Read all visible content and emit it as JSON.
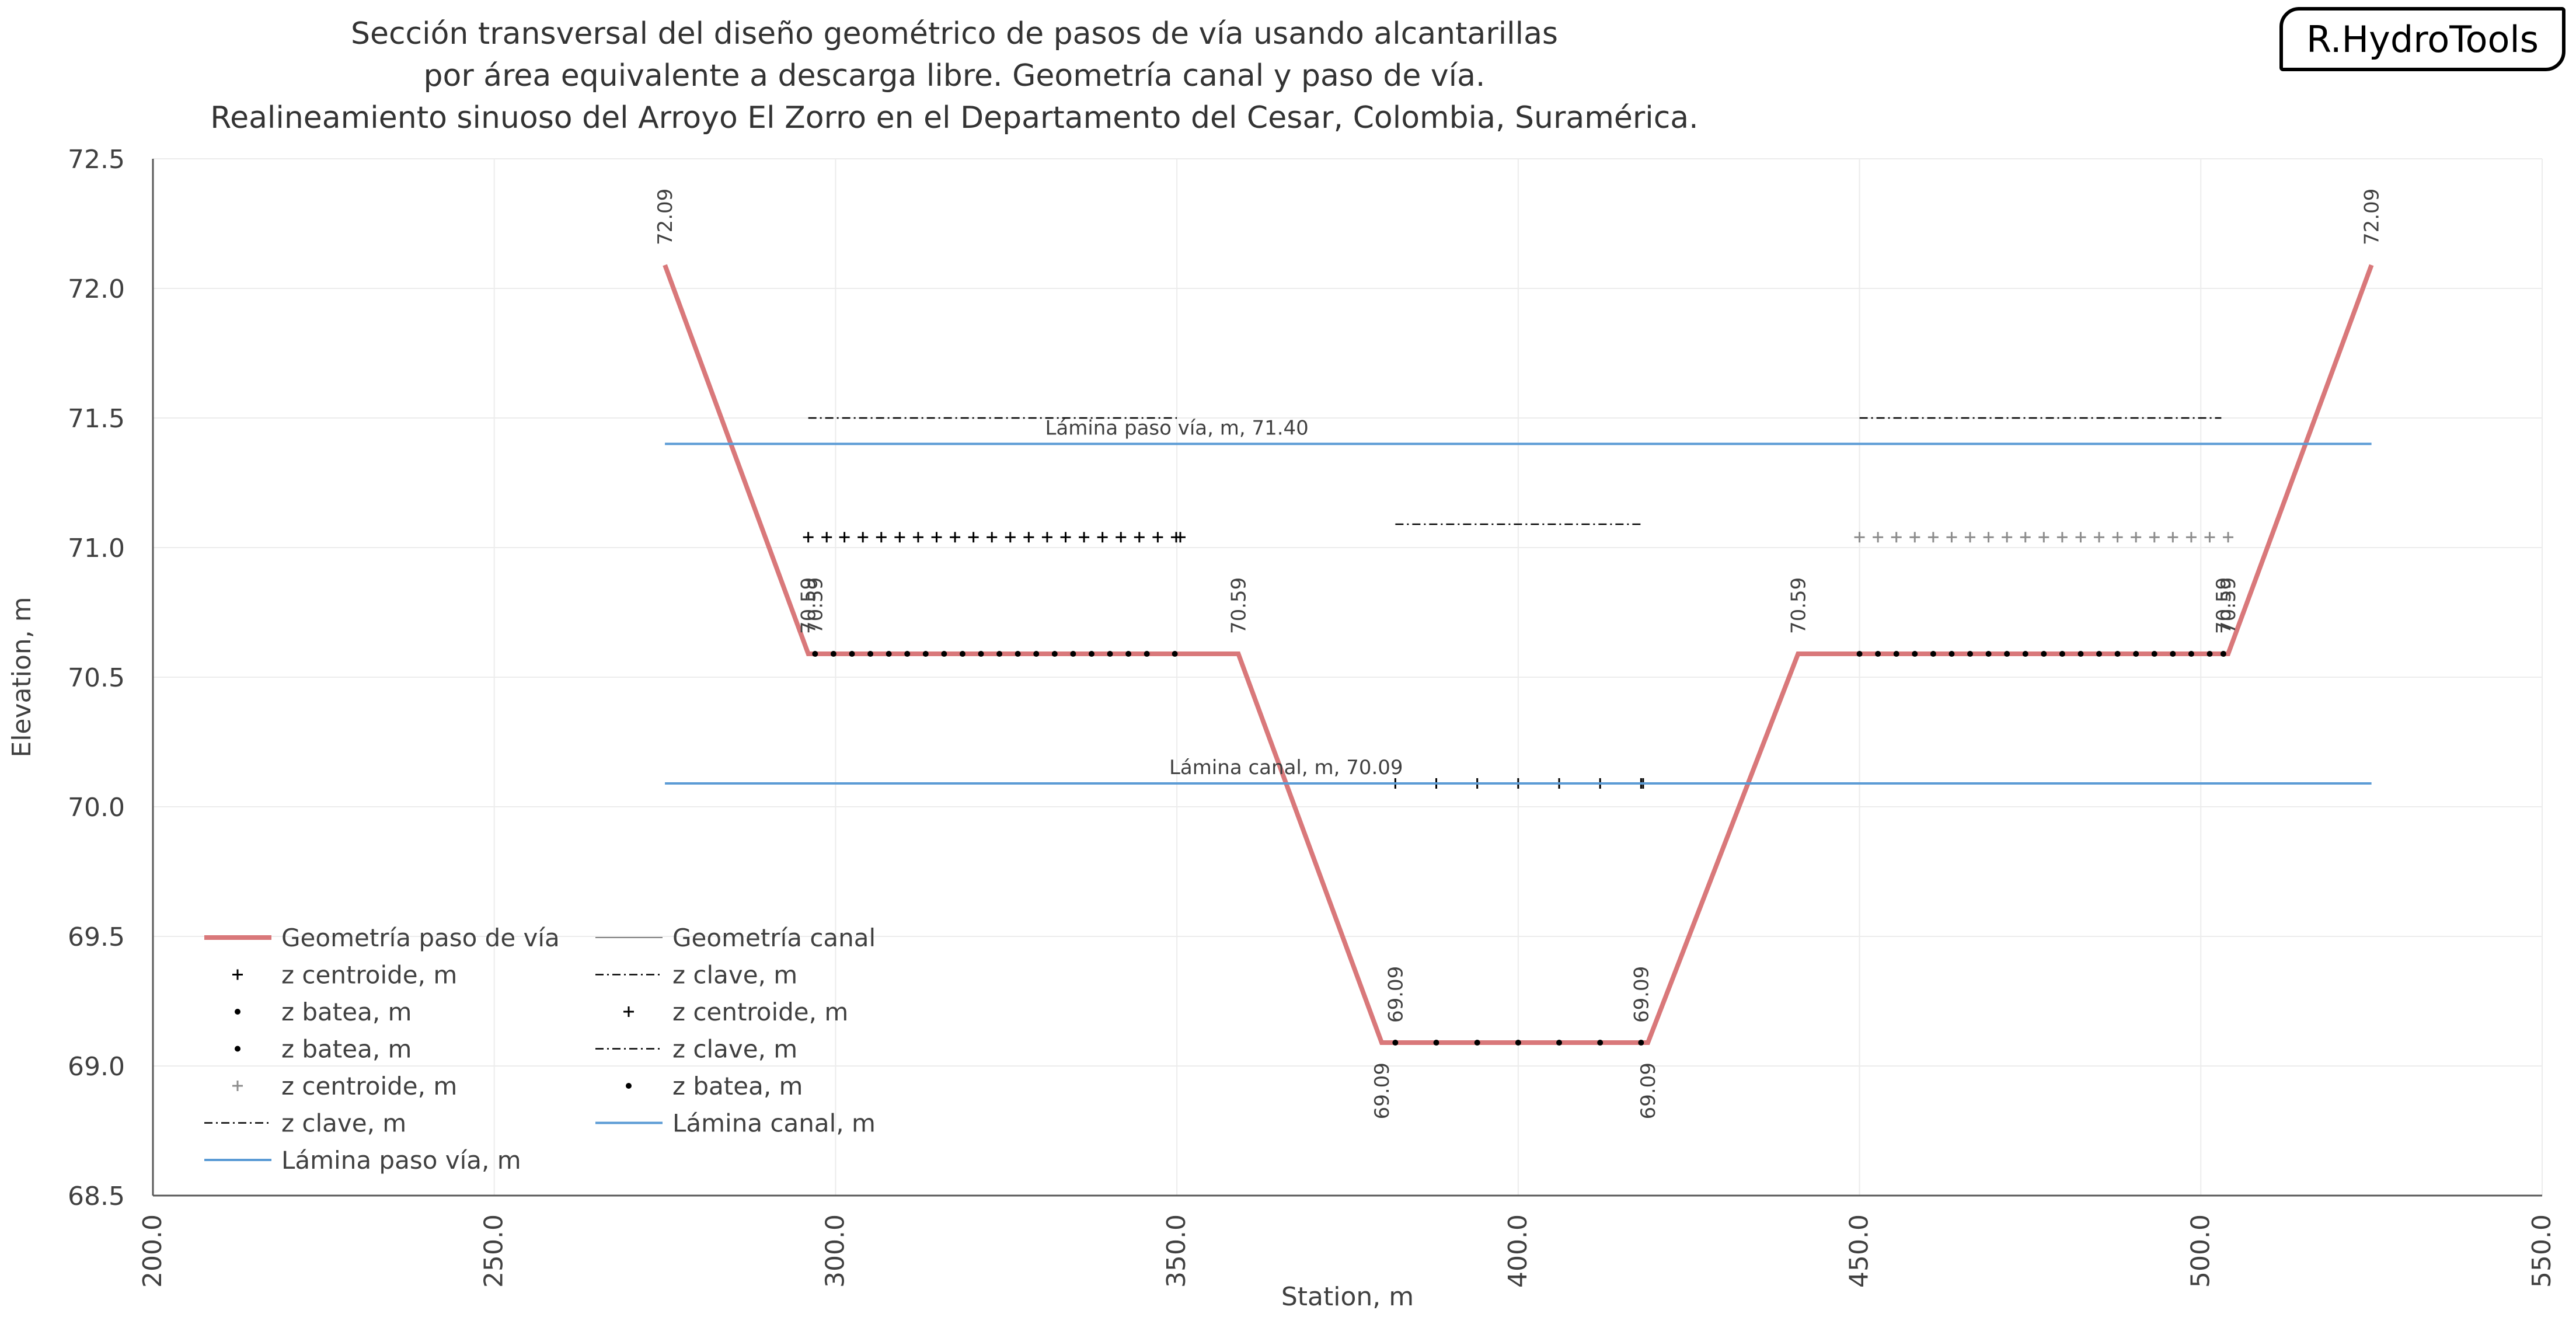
{
  "header": {
    "title_lines": [
      "Sección transversal del diseño geométrico de pasos de vía usando alcantarillas",
      "por área equivalente a descarga libre. Geometría canal y paso de vía.",
      "Realineamiento sinuoso del Arroyo El Zorro en el Departamento del Cesar, Colombia, Suramérica."
    ],
    "brand": "R.HydroTools"
  },
  "chart_data": {
    "type": "line",
    "xlabel": "Station, m",
    "ylabel": "Elevation, m",
    "xlim": [
      200,
      550
    ],
    "ylim": [
      68.5,
      72.5
    ],
    "x_ticks": [
      "200.0",
      "250.0",
      "300.0",
      "350.0",
      "400.0",
      "450.0",
      "500.0",
      "550.0"
    ],
    "y_ticks": [
      "68.5",
      "69.0",
      "69.5",
      "70.0",
      "70.5",
      "71.0",
      "71.5",
      "72.0",
      "72.5"
    ],
    "grid": true,
    "legend_position": "bottom-left",
    "colors": {
      "road": "#d9787a",
      "water": "#5b9bd5",
      "canal": "#7f7f7f",
      "marker": "#000000",
      "marker_light": "#8c8c8c",
      "axis": "#595959",
      "grid": "#ececec",
      "text": "#404040"
    },
    "series": [
      {
        "name": "Geometría paso de vía",
        "kind": "line",
        "x": [
          275,
          296,
          359,
          380,
          419,
          441,
          504,
          525
        ],
        "y": [
          72.09,
          70.59,
          70.59,
          69.09,
          69.09,
          70.59,
          70.59,
          72.09
        ]
      },
      {
        "name": "Geometría canal",
        "kind": "line",
        "x": [],
        "y": []
      },
      {
        "name": "z centroide, m",
        "kind": "plus",
        "group": "left",
        "x": [
          296,
          298.7,
          301.3,
          304,
          306.7,
          309.4,
          312.1,
          314.8,
          317.5,
          320.2,
          322.9,
          325.6,
          328.3,
          331,
          333.7,
          336.4,
          339.1,
          341.8,
          344.5,
          347.2,
          349.9,
          350.5
        ],
        "y": [
          71.04,
          71.04,
          71.04,
          71.04,
          71.04,
          71.04,
          71.04,
          71.04,
          71.04,
          71.04,
          71.04,
          71.04,
          71.04,
          71.04,
          71.04,
          71.04,
          71.04,
          71.04,
          71.04,
          71.04,
          71.04,
          71.04
        ]
      },
      {
        "name": "z clave, m",
        "kind": "dashdot",
        "group": "left",
        "x": [
          296,
          350
        ],
        "y": [
          71.5,
          71.5
        ]
      },
      {
        "name": "z centroide, m",
        "kind": "plus",
        "group": "center",
        "x": [
          382,
          388,
          394,
          400,
          406,
          412,
          418,
          418.3
        ],
        "y": [
          70.09,
          70.09,
          70.09,
          70.09,
          70.09,
          70.09,
          70.09,
          70.09
        ]
      },
      {
        "name": "z batea, m",
        "kind": "dot",
        "group": "left",
        "x": [
          297,
          299.7,
          302.4,
          305.1,
          307.8,
          310.5,
          313.2,
          315.9,
          318.6,
          321.3,
          324,
          326.7,
          329.4,
          332.1,
          334.8,
          337.5,
          340.2,
          342.9,
          345.6,
          349.7
        ],
        "y": [
          70.59,
          70.59,
          70.59,
          70.59,
          70.59,
          70.59,
          70.59,
          70.59,
          70.59,
          70.59,
          70.59,
          70.59,
          70.59,
          70.59,
          70.59,
          70.59,
          70.59,
          70.59,
          70.59,
          70.59
        ]
      },
      {
        "name": "z clave, m",
        "kind": "dashdot",
        "group": "center",
        "x": [
          382,
          418
        ],
        "y": [
          71.09,
          71.09
        ]
      },
      {
        "name": "z batea, m",
        "kind": "dot",
        "group": "center",
        "x": [
          382,
          388,
          394,
          400,
          406,
          412,
          418
        ],
        "y": [
          69.09,
          69.09,
          69.09,
          69.09,
          69.09,
          69.09,
          69.09
        ]
      },
      {
        "name": "z centroide, m",
        "kind": "plus_light",
        "group": "right",
        "x": [
          450,
          452.7,
          455.4,
          458.1,
          460.8,
          463.5,
          466.2,
          468.9,
          471.6,
          474.3,
          477,
          479.7,
          482.4,
          485.1,
          487.8,
          490.5,
          493.2,
          495.9,
          498.6,
          501.3,
          504
        ],
        "y": [
          71.04,
          71.04,
          71.04,
          71.04,
          71.04,
          71.04,
          71.04,
          71.04,
          71.04,
          71.04,
          71.04,
          71.04,
          71.04,
          71.04,
          71.04,
          71.04,
          71.04,
          71.04,
          71.04,
          71.04,
          71.04
        ]
      },
      {
        "name": "z batea, m",
        "kind": "dot",
        "group": "right",
        "x": [
          450,
          452.7,
          455.4,
          458.1,
          460.8,
          463.5,
          466.2,
          468.9,
          471.6,
          474.3,
          477,
          479.7,
          482.4,
          485.1,
          487.8,
          490.5,
          493.2,
          495.9,
          498.6,
          501.3,
          503.3
        ],
        "y": [
          70.59,
          70.59,
          70.59,
          70.59,
          70.59,
          70.59,
          70.59,
          70.59,
          70.59,
          70.59,
          70.59,
          70.59,
          70.59,
          70.59,
          70.59,
          70.59,
          70.59,
          70.59,
          70.59,
          70.59,
          70.59
        ]
      },
      {
        "name": "z clave, m",
        "kind": "dashdot",
        "group": "right",
        "x": [
          450,
          503
        ],
        "y": [
          71.5,
          71.5
        ]
      },
      {
        "name": "Lámina canal, m",
        "kind": "water",
        "x": [
          275,
          525
        ],
        "y": [
          70.09,
          70.09
        ]
      },
      {
        "name": "Lámina paso vía, m",
        "kind": "water",
        "x": [
          275,
          525
        ],
        "y": [
          71.4,
          71.4
        ]
      }
    ],
    "annotations": [
      {
        "text": "Lámina paso vía, m, 71.40",
        "x": 350,
        "y": 71.4,
        "placement": "above"
      },
      {
        "text": "Lámina canal, m, 70.09",
        "x": 366,
        "y": 70.09,
        "placement": "above"
      }
    ],
    "point_labels": [
      {
        "text": "72.09",
        "x": 275,
        "y": 72.09,
        "placement": "above"
      },
      {
        "text": "70.59",
        "x": 296,
        "y": 70.59,
        "placement": "above"
      },
      {
        "text": "70.59",
        "x": 297,
        "y": 70.59,
        "placement": "above"
      },
      {
        "text": "70.59",
        "x": 359,
        "y": 70.59,
        "placement": "above"
      },
      {
        "text": "69.09",
        "x": 382,
        "y": 69.09,
        "placement": "above"
      },
      {
        "text": "69.09",
        "x": 380,
        "y": 69.09,
        "placement": "below"
      },
      {
        "text": "69.09",
        "x": 418,
        "y": 69.09,
        "placement": "above"
      },
      {
        "text": "69.09",
        "x": 419,
        "y": 69.09,
        "placement": "below"
      },
      {
        "text": "70.59",
        "x": 441,
        "y": 70.59,
        "placement": "above"
      },
      {
        "text": "70.59",
        "x": 503.3,
        "y": 70.59,
        "placement": "above"
      },
      {
        "text": "70.59",
        "x": 504,
        "y": 70.59,
        "placement": "above"
      },
      {
        "text": "72.09",
        "x": 525,
        "y": 72.09,
        "placement": "above"
      }
    ],
    "legend": [
      {
        "label": "Geometría paso de vía",
        "kind": "line"
      },
      {
        "label": "Geometría canal",
        "kind": "canal"
      },
      {
        "label": "z centroide, m",
        "kind": "plus"
      },
      {
        "label": "z clave, m",
        "kind": "dashdot"
      },
      {
        "label": "z batea, m",
        "kind": "dot"
      },
      {
        "label": "z centroide, m",
        "kind": "plus"
      },
      {
        "label": "z batea, m",
        "kind": "dot"
      },
      {
        "label": "z clave, m",
        "kind": "dashdot"
      },
      {
        "label": "z centroide, m",
        "kind": "plus_light"
      },
      {
        "label": "z batea, m",
        "kind": "dot"
      },
      {
        "label": "z clave, m",
        "kind": "dashdot"
      },
      {
        "label": "Lámina canal, m",
        "kind": "water"
      },
      {
        "label": "Lámina paso vía, m",
        "kind": "water"
      }
    ]
  }
}
